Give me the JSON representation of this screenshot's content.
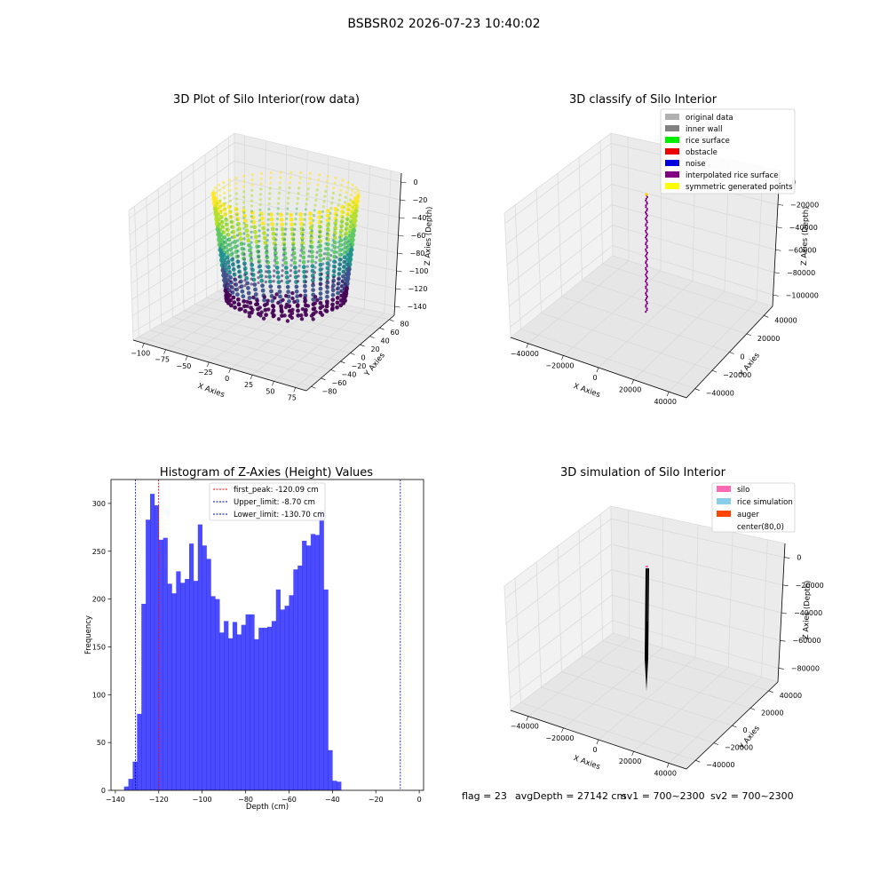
{
  "suptitle": "BSBSR02 2026-07-23 10:40:02",
  "panel1": {
    "title": "3D Plot of Silo Interior(row data)",
    "xlabel": "X Axies",
    "ylabel": "Y Axies",
    "zlabel": "Z Axies (Depth)",
    "x_ticks": [
      "−100",
      "−75",
      "−50",
      "−25",
      "0",
      "25",
      "50",
      "75"
    ],
    "y_ticks": [
      "−80",
      "−60",
      "−40",
      "−20",
      "0",
      "20",
      "40",
      "60",
      "80"
    ],
    "z_ticks": [
      "0",
      "−20",
      "−40",
      "−60",
      "−80",
      "−100",
      "−120",
      "−140"
    ],
    "colormap": "viridis"
  },
  "panel2": {
    "title": "3D classify of Silo Interior",
    "xlabel": "X Axies",
    "ylabel": "Y Axies",
    "zlabel": "Z Axies (Depth)",
    "x_ticks": [
      "−40000",
      "−20000",
      "0",
      "20000",
      "40000"
    ],
    "y_ticks": [
      "−40000",
      "−20000",
      "0",
      "20000",
      "40000"
    ],
    "z_ticks": [
      "0",
      "−20000",
      "−40000",
      "−60000",
      "−80000",
      "−100000"
    ],
    "legend": [
      {
        "label": "original data",
        "color": "#b0b0b0"
      },
      {
        "label": "inner wall",
        "color": "#808080"
      },
      {
        "label": "rice surface",
        "color": "#00ee00"
      },
      {
        "label": "obstacle",
        "color": "#ee0000"
      },
      {
        "label": "noise",
        "color": "#0000dd"
      },
      {
        "label": "interpolated rice surface",
        "color": "#800080"
      },
      {
        "label": "symmetric generated points",
        "color": "#ffff00"
      }
    ]
  },
  "panel3": {
    "title": "Histogram of Z-Axies (Height) Values",
    "xlabel": "Depth (cm)",
    "ylabel": "Frequency",
    "legend": [
      {
        "label": "first_peak: -120.09 cm",
        "color": "#ff0000"
      },
      {
        "label": "Upper_limit: -8.70 cm",
        "color": "#0000aa"
      },
      {
        "label": "Lower_limit: -130.70 cm",
        "color": "#0000aa"
      }
    ]
  },
  "panel4": {
    "title": "3D simulation of Silo Interior",
    "xlabel": "X Axies",
    "ylabel": "Y Axies",
    "zlabel": "Z Axies (Depth)",
    "x_ticks": [
      "−40000",
      "−20000",
      "0",
      "20000",
      "40000"
    ],
    "y_ticks": [
      "−40000",
      "−20000",
      "0",
      "20000",
      "40000"
    ],
    "z_ticks": [
      "0",
      "−20000",
      "−40000",
      "−60000",
      "−80000"
    ],
    "legend": [
      {
        "label": "silo",
        "color": "#ff69b4"
      },
      {
        "label": "rice simulation",
        "color": "#87ceeb"
      },
      {
        "label": "auger",
        "color": "#ff4500"
      },
      {
        "label": "center(80,0)",
        "color": "#ffffff"
      }
    ]
  },
  "footer": {
    "flag": "flag = 23",
    "avg_depth": "avgDepth = 27142 cm",
    "sv1": "sv1 = 700~2300",
    "sv2": "sv2 = 700~2300"
  },
  "chart_data": {
    "type": "bar",
    "title": "Histogram of Z-Axies (Height) Values",
    "xlabel": "Depth (cm)",
    "ylabel": "Frequency",
    "xlim": [
      -142,
      2
    ],
    "ylim": [
      0,
      325
    ],
    "x_ticks": [
      -140,
      -120,
      -100,
      -80,
      -60,
      -40,
      -20,
      0
    ],
    "y_ticks": [
      0,
      50,
      100,
      150,
      200,
      250,
      300
    ],
    "bin_start": -136.0,
    "bin_width": 2.0,
    "values": [
      4,
      12,
      30,
      80,
      195,
      283,
      310,
      298,
      262,
      264,
      216,
      206,
      229,
      217,
      221,
      258,
      219,
      278,
      256,
      242,
      203,
      200,
      165,
      177,
      159,
      176,
      163,
      173,
      184,
      184,
      158,
      170,
      170,
      171,
      177,
      210,
      189,
      193,
      204,
      231,
      235,
      261,
      256,
      268,
      267,
      293,
      210,
      42,
      10,
      9
    ],
    "color": "#0000ff",
    "lines": [
      {
        "label": "first_peak: -120.09 cm",
        "x": -120.09,
        "color": "#ff0000"
      },
      {
        "label": "Upper_limit: -8.70 cm",
        "x": -8.7,
        "color": "#0000aa"
      },
      {
        "label": "Lower_limit: -130.70 cm",
        "x": -130.7,
        "color": "#0000aa"
      }
    ],
    "legend_position": "upper-center"
  }
}
